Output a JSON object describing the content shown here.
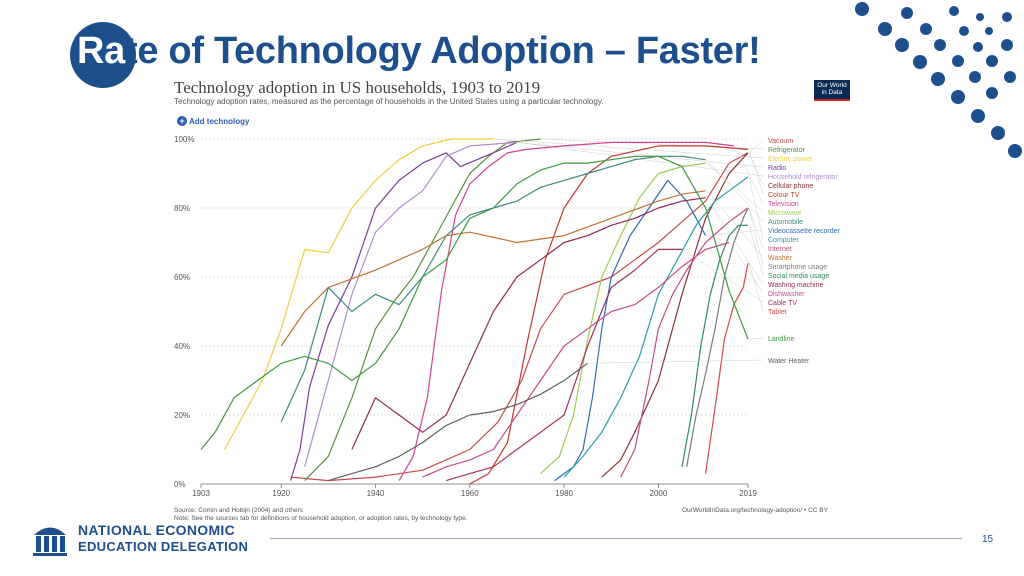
{
  "slide": {
    "title_first": "Ra",
    "title_rest": "te of Technology Adoption – Faster!",
    "page_number": "15"
  },
  "chart_header": {
    "title": "Technology adoption in US households, 1903 to 2019",
    "subtitle": "Technology adoption rates, measured as the percentage of households in the United States using a particular technology.",
    "add_button": "Add technology",
    "logo_line1": "Our World",
    "logo_line2": "in Data"
  },
  "footer": {
    "source": "Source: Comin and Hobijn (2004) and others",
    "note": "Note: See the sources tab for definitions of household adoption, or adoption rates, by technology type.",
    "url": "OurWorldInData.org/technology-adoption/ • CC BY",
    "org_line1": "NATIONAL ECONOMIC",
    "org_line2": "EDUCATION DELEGATION"
  },
  "chart_data": {
    "type": "line",
    "title": "Technology adoption in US households, 1903 to 2019",
    "xlabel": "",
    "ylabel": "",
    "xlim": [
      1903,
      2019
    ],
    "ylim": [
      0,
      100
    ],
    "x_ticks": [
      1903,
      1920,
      1940,
      1960,
      1980,
      2000,
      2019
    ],
    "y_ticks": [
      0,
      20,
      40,
      60,
      80,
      100
    ],
    "y_tick_labels": [
      "0%",
      "20%",
      "40%",
      "60%",
      "80%",
      "100%"
    ],
    "grid": "horizontal-dotted",
    "series": [
      {
        "name": "Vacuum",
        "color": "#c94a4a",
        "points": [
          [
            1922,
            2
          ],
          [
            1930,
            1
          ],
          [
            1940,
            2
          ],
          [
            1950,
            4
          ],
          [
            1960,
            10
          ],
          [
            1966,
            18
          ],
          [
            1971,
            30
          ],
          [
            1975,
            45
          ],
          [
            1980,
            55
          ],
          [
            1990,
            60
          ],
          [
            1995,
            65
          ],
          [
            2000,
            70
          ],
          [
            2005,
            76
          ],
          [
            2010,
            82
          ],
          [
            2015,
            93
          ],
          [
            2019,
            96
          ]
        ]
      },
      {
        "name": "Refrigerator",
        "color": "#5a8e3c",
        "points": [
          [
            1925,
            1
          ],
          [
            1930,
            8
          ],
          [
            1935,
            25
          ],
          [
            1940,
            45
          ],
          [
            1944,
            53
          ],
          [
            1948,
            60
          ],
          [
            1952,
            70
          ],
          [
            1956,
            80
          ],
          [
            1960,
            90
          ],
          [
            1964,
            95
          ],
          [
            1968,
            99
          ],
          [
            1975,
            100
          ]
        ]
      },
      {
        "name": "Electric power",
        "color": "#f0cf3c",
        "points": [
          [
            1908,
            10
          ],
          [
            1912,
            20
          ],
          [
            1916,
            30
          ],
          [
            1920,
            45
          ],
          [
            1925,
            68
          ],
          [
            1930,
            67
          ],
          [
            1935,
            80
          ],
          [
            1940,
            88
          ],
          [
            1945,
            94
          ],
          [
            1950,
            98
          ],
          [
            1956,
            100
          ],
          [
            1965,
            100
          ]
        ]
      },
      {
        "name": "Radio",
        "color": "#7b3e9d",
        "points": [
          [
            1922,
            1
          ],
          [
            1924,
            10
          ],
          [
            1926,
            28
          ],
          [
            1930,
            46
          ],
          [
            1935,
            60
          ],
          [
            1940,
            80
          ],
          [
            1945,
            88
          ],
          [
            1950,
            93
          ],
          [
            1955,
            96
          ],
          [
            1958,
            92
          ],
          [
            1965,
            96
          ],
          [
            1970,
            99
          ]
        ]
      },
      {
        "name": "Household refrigerator",
        "color": "#b48cc8",
        "points": [
          [
            1925,
            5
          ],
          [
            1930,
            30
          ],
          [
            1935,
            55
          ],
          [
            1940,
            73
          ],
          [
            1945,
            80
          ],
          [
            1950,
            85
          ],
          [
            1955,
            95
          ],
          [
            1960,
            98
          ],
          [
            1970,
            99
          ]
        ]
      },
      {
        "name": "Cellular phone",
        "color": "#8a3030",
        "points": [
          [
            1988,
            2
          ],
          [
            1992,
            7
          ],
          [
            1995,
            15
          ],
          [
            2000,
            30
          ],
          [
            2005,
            55
          ],
          [
            2010,
            77
          ],
          [
            2015,
            90
          ],
          [
            2019,
            96
          ]
        ]
      },
      {
        "name": "Colour TV",
        "color": "#c0392b",
        "points": [
          [
            1960,
            0
          ],
          [
            1964,
            3
          ],
          [
            1968,
            12
          ],
          [
            1972,
            40
          ],
          [
            1976,
            65
          ],
          [
            1980,
            80
          ],
          [
            1985,
            90
          ],
          [
            1990,
            95
          ],
          [
            2000,
            98
          ],
          [
            2010,
            98
          ],
          [
            2019,
            97
          ]
        ]
      },
      {
        "name": "Television",
        "color": "#d5408f",
        "points": [
          [
            1945,
            1
          ],
          [
            1948,
            8
          ],
          [
            1951,
            25
          ],
          [
            1954,
            56
          ],
          [
            1957,
            78
          ],
          [
            1960,
            87
          ],
          [
            1964,
            92
          ],
          [
            1968,
            96
          ],
          [
            1972,
            97
          ],
          [
            1980,
            98
          ],
          [
            1990,
            99
          ],
          [
            2000,
            99
          ],
          [
            2010,
            99
          ],
          [
            2016,
            98
          ]
        ]
      },
      {
        "name": "Microwave",
        "color": "#9ccc55",
        "points": [
          [
            1975,
            3
          ],
          [
            1979,
            8
          ],
          [
            1982,
            20
          ],
          [
            1985,
            42
          ],
          [
            1988,
            60
          ],
          [
            1992,
            72
          ],
          [
            1996,
            83
          ],
          [
            2000,
            90
          ],
          [
            2005,
            92
          ],
          [
            2010,
            93
          ]
        ]
      },
      {
        "name": "Automobile",
        "color": "#3a8a7e",
        "points": [
          [
            1920,
            18
          ],
          [
            1925,
            33
          ],
          [
            1930,
            57
          ],
          [
            1935,
            50
          ],
          [
            1940,
            55
          ],
          [
            1945,
            52
          ],
          [
            1950,
            60
          ],
          [
            1955,
            72
          ],
          [
            1960,
            78
          ],
          [
            1965,
            80
          ],
          [
            1970,
            82
          ],
          [
            1975,
            86
          ],
          [
            1980,
            88
          ],
          [
            1985,
            90
          ],
          [
            1990,
            92
          ],
          [
            1995,
            94
          ],
          [
            2000,
            95
          ],
          [
            2005,
            95
          ],
          [
            2010,
            94
          ]
        ]
      },
      {
        "name": "Videocassette recorder",
        "color": "#2e6db5",
        "points": [
          [
            1978,
            1
          ],
          [
            1980,
            3
          ],
          [
            1982,
            5
          ],
          [
            1984,
            10
          ],
          [
            1986,
            25
          ],
          [
            1988,
            45
          ],
          [
            1990,
            60
          ],
          [
            1994,
            72
          ],
          [
            1998,
            80
          ],
          [
            2002,
            88
          ],
          [
            2006,
            82
          ],
          [
            2010,
            72
          ]
        ]
      },
      {
        "name": "Computer",
        "color": "#2a9fa8",
        "points": [
          [
            1980,
            2
          ],
          [
            1984,
            8
          ],
          [
            1988,
            15
          ],
          [
            1992,
            25
          ],
          [
            1996,
            37
          ],
          [
            2000,
            55
          ],
          [
            2004,
            65
          ],
          [
            2008,
            75
          ],
          [
            2012,
            82
          ],
          [
            2016,
            86
          ],
          [
            2019,
            89
          ]
        ]
      },
      {
        "name": "Internet",
        "color": "#c44a7e",
        "points": [
          [
            1992,
            2
          ],
          [
            1995,
            10
          ],
          [
            1998,
            30
          ],
          [
            2000,
            45
          ],
          [
            2003,
            55
          ],
          [
            2006,
            62
          ],
          [
            2010,
            70
          ],
          [
            2015,
            76
          ],
          [
            2019,
            80
          ]
        ]
      },
      {
        "name": "Washer",
        "color": "#c0722f",
        "points": [
          [
            1920,
            40
          ],
          [
            1925,
            50
          ],
          [
            1930,
            57
          ],
          [
            1940,
            62
          ],
          [
            1950,
            68
          ],
          [
            1955,
            72
          ],
          [
            1960,
            73
          ],
          [
            1970,
            70
          ],
          [
            1980,
            72
          ],
          [
            1990,
            77
          ],
          [
            2000,
            82
          ],
          [
            2005,
            84
          ],
          [
            2010,
            85
          ]
        ]
      },
      {
        "name": "Smartphone usage",
        "color": "#7a7a7a",
        "points": [
          [
            2006,
            5
          ],
          [
            2008,
            20
          ],
          [
            2010,
            32
          ],
          [
            2012,
            45
          ],
          [
            2014,
            60
          ],
          [
            2016,
            70
          ],
          [
            2018,
            77
          ],
          [
            2019,
            80
          ]
        ]
      },
      {
        "name": "Social media usage",
        "color": "#2b8c5b",
        "points": [
          [
            2005,
            5
          ],
          [
            2007,
            20
          ],
          [
            2009,
            40
          ],
          [
            2011,
            55
          ],
          [
            2013,
            65
          ],
          [
            2015,
            72
          ],
          [
            2017,
            75
          ],
          [
            2019,
            75
          ]
        ]
      },
      {
        "name": "Washing machine",
        "color": "#8c2a5a",
        "points": [
          [
            1935,
            10
          ],
          [
            1940,
            25
          ],
          [
            1945,
            20
          ],
          [
            1950,
            15
          ],
          [
            1955,
            20
          ],
          [
            1960,
            35
          ],
          [
            1965,
            50
          ],
          [
            1970,
            60
          ],
          [
            1975,
            65
          ],
          [
            1980,
            70
          ],
          [
            1985,
            72
          ],
          [
            1990,
            75
          ],
          [
            1995,
            77
          ],
          [
            2000,
            80
          ],
          [
            2005,
            82
          ],
          [
            2010,
            83
          ]
        ]
      },
      {
        "name": "Dishwasher",
        "color": "#c84a8e",
        "points": [
          [
            1950,
            2
          ],
          [
            1955,
            5
          ],
          [
            1960,
            7
          ],
          [
            1965,
            10
          ],
          [
            1970,
            20
          ],
          [
            1975,
            30
          ],
          [
            1980,
            40
          ],
          [
            1985,
            45
          ],
          [
            1990,
            50
          ],
          [
            1995,
            52
          ],
          [
            2000,
            57
          ],
          [
            2005,
            63
          ],
          [
            2010,
            68
          ],
          [
            2015,
            70
          ]
        ]
      },
      {
        "name": "Cable TV",
        "color": "#a43060",
        "points": [
          [
            1955,
            1
          ],
          [
            1960,
            3
          ],
          [
            1965,
            5
          ],
          [
            1970,
            10
          ],
          [
            1975,
            15
          ],
          [
            1980,
            20
          ],
          [
            1985,
            40
          ],
          [
            1990,
            57
          ],
          [
            1995,
            62
          ],
          [
            2000,
            68
          ],
          [
            2005,
            68
          ]
        ]
      },
      {
        "name": "Tablet",
        "color": "#d84545",
        "points": [
          [
            2010,
            3
          ],
          [
            2012,
            22
          ],
          [
            2014,
            42
          ],
          [
            2016,
            52
          ],
          [
            2018,
            57
          ],
          [
            2019,
            64
          ]
        ]
      },
      {
        "name": "Landline",
        "color": "#3f9a3f",
        "points": [
          [
            1903,
            10
          ],
          [
            1906,
            15
          ],
          [
            1910,
            25
          ],
          [
            1915,
            30
          ],
          [
            1920,
            35
          ],
          [
            1925,
            37
          ],
          [
            1930,
            35
          ],
          [
            1935,
            30
          ],
          [
            1940,
            35
          ],
          [
            1945,
            45
          ],
          [
            1950,
            60
          ],
          [
            1955,
            65
          ],
          [
            1960,
            77
          ],
          [
            1965,
            80
          ],
          [
            1970,
            87
          ],
          [
            1975,
            91
          ],
          [
            1980,
            93
          ],
          [
            1985,
            93
          ],
          [
            1990,
            94
          ],
          [
            1995,
            95
          ],
          [
            2000,
            95
          ],
          [
            2005,
            92
          ],
          [
            2010,
            80
          ],
          [
            2015,
            56
          ],
          [
            2019,
            42
          ]
        ]
      },
      {
        "name": "Water Heater",
        "color": "#606060",
        "points": [
          [
            1930,
            1
          ],
          [
            1935,
            3
          ],
          [
            1940,
            5
          ],
          [
            1945,
            8
          ],
          [
            1950,
            12
          ],
          [
            1955,
            17
          ],
          [
            1960,
            20
          ],
          [
            1965,
            21
          ],
          [
            1970,
            23
          ],
          [
            1975,
            26
          ],
          [
            1980,
            30
          ],
          [
            1985,
            35
          ]
        ]
      }
    ]
  }
}
